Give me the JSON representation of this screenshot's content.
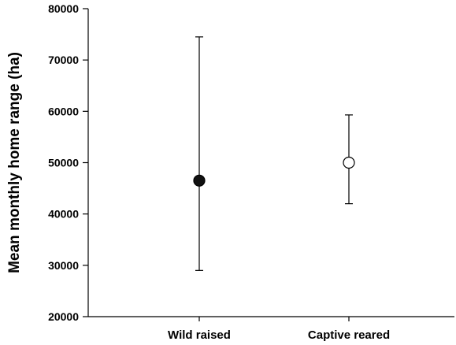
{
  "chart_data": {
    "type": "scatter",
    "title": "",
    "xlabel": "",
    "ylabel": "Mean monthly home range (ha)",
    "ylim": [
      20000,
      80000
    ],
    "yticks": [
      20000,
      30000,
      40000,
      50000,
      60000,
      70000,
      80000
    ],
    "categories": [
      "Wild raised",
      "Captive reared"
    ],
    "points": [
      {
        "category": "Wild raised",
        "value": 46500,
        "error_low": 29000,
        "error_high": 74500,
        "marker": "filled-circle",
        "color": "#111111"
      },
      {
        "category": "Captive reared",
        "value": 50000,
        "error_low": 42000,
        "error_high": 59300,
        "marker": "open-circle",
        "color": "#ffffff"
      }
    ],
    "grid": false,
    "legend": "none"
  }
}
